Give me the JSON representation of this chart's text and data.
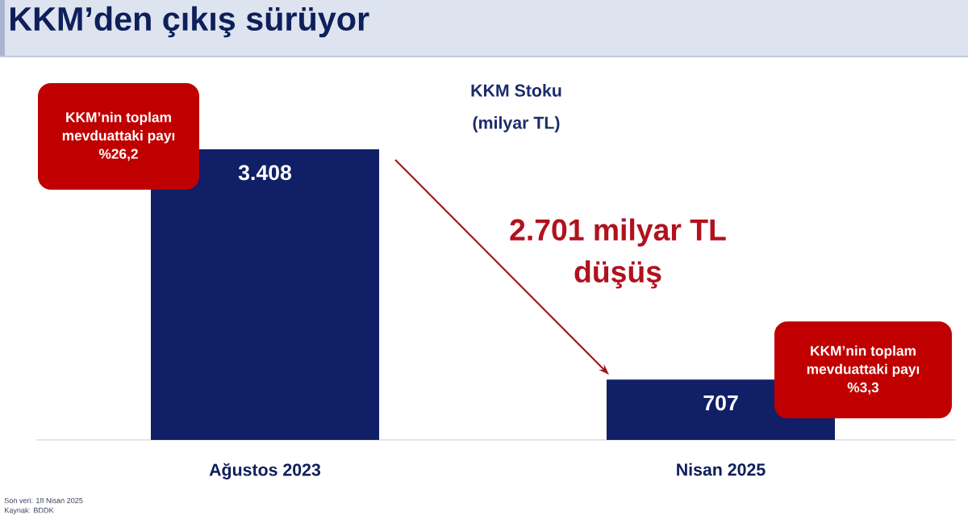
{
  "chart_data": {
    "type": "bar",
    "title": "KKM’den çıkış sürüyor",
    "subtitle": "KKM Stoku (milyar TL)",
    "categories": [
      "Ağustos 2023",
      "Nisan 2025"
    ],
    "values": [
      3408,
      707
    ],
    "value_labels": [
      "3.408",
      "707"
    ],
    "color": "#101f66",
    "annotations": [
      "KKM’nin toplam mevduattaki payı %26,2",
      "2.701 milyar TL düşüş",
      "KKM’nin toplam mevduattaki payı %3,3",
      "Son veri: 18 Nisan 2025",
      "Kaynak: BDDK"
    ]
  }
}
